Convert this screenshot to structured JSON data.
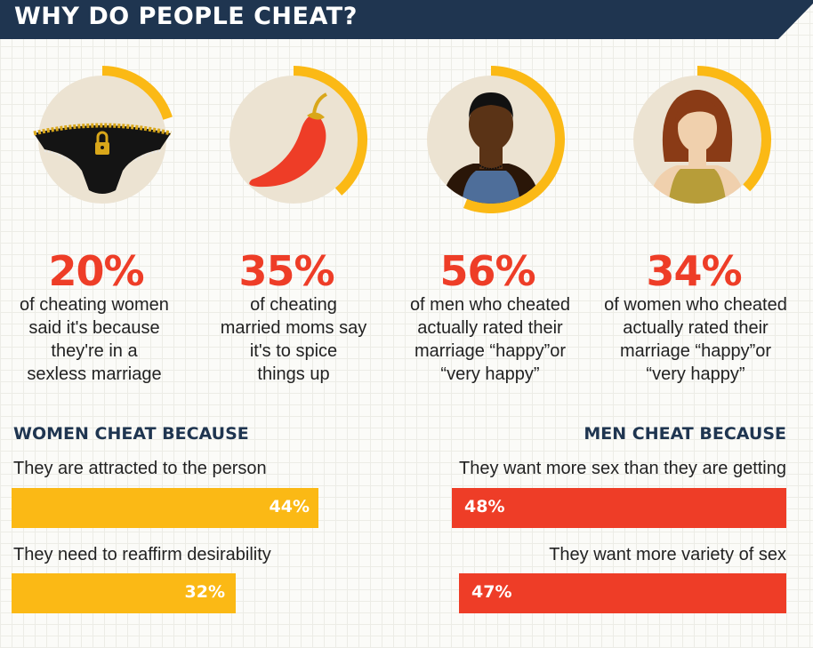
{
  "title": "WHY DO PEOPLE CHEAT?",
  "colors": {
    "navy": "#1f3550",
    "red": "#ee3d27",
    "yellow": "#fbb915",
    "circle": "#ece3d2"
  },
  "stats": [
    {
      "percent": "20%",
      "value": 20,
      "icon": "underwear-icon",
      "lines": [
        "of cheating women",
        "said it's because",
        "they're in a",
        "sexless marriage"
      ]
    },
    {
      "percent": "35%",
      "value": 35,
      "icon": "chili-pepper-icon",
      "lines": [
        "of cheating",
        "married moms say",
        "it's to spice",
        "things up"
      ]
    },
    {
      "percent": "56%",
      "value": 56,
      "icon": "man-icon",
      "lines": [
        "of men who cheated",
        "actually rated their",
        "marriage “happy”or",
        "“very happy”"
      ]
    },
    {
      "percent": "34%",
      "value": 34,
      "icon": "woman-icon",
      "lines": [
        "of women who cheated",
        "actually rated their",
        "marriage “happy”or",
        "“very happy”"
      ]
    }
  ],
  "women": {
    "heading": "WOMEN CHEAT BECAUSE",
    "items": [
      {
        "label": "They are attracted to the person",
        "percent": "44%",
        "value": 44
      },
      {
        "label": "They need to reaffirm desirability",
        "percent": "32%",
        "value": 32
      }
    ]
  },
  "men": {
    "heading": "MEN CHEAT BECAUSE",
    "items": [
      {
        "label": "They want more sex than they are getting",
        "percent": "48%",
        "value": 48
      },
      {
        "label": "They want more variety of sex",
        "percent": "47%",
        "value": 47
      }
    ]
  }
}
